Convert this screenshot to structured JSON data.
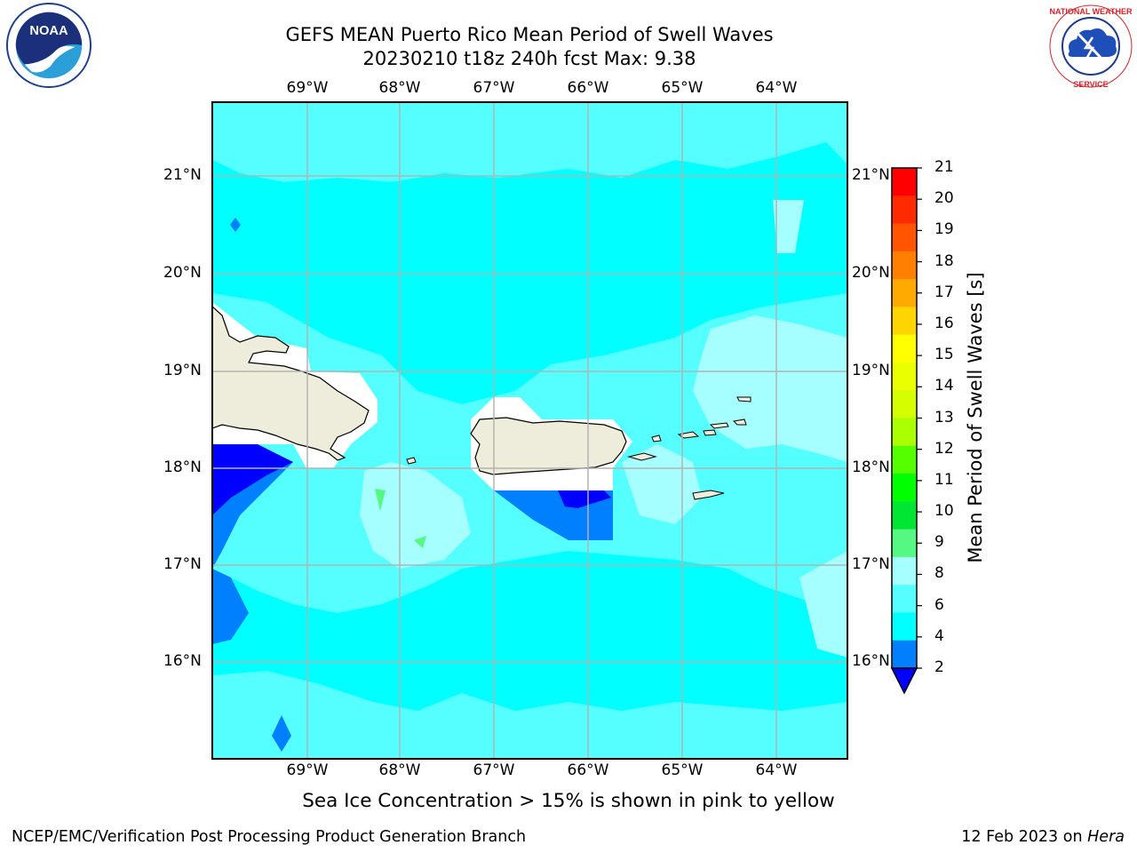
{
  "header": {
    "title_line1": "GEFS MEAN Puerto Rico Mean Period of Swell Waves",
    "title_line2": "20230210 t18z 240h fcst   Max: 9.38"
  },
  "logos": {
    "left": "NOAA",
    "right": "NATIONAL WEATHER SERVICE"
  },
  "map": {
    "longitude_labels": [
      "69°W",
      "68°W",
      "67°W",
      "66°W",
      "65°W",
      "64°W"
    ],
    "latitude_labels": [
      "21°N",
      "20°N",
      "19°N",
      "18°N",
      "17°N",
      "16°N"
    ],
    "grid": true,
    "colors": {
      "land": "#eeecdb",
      "white_band": "#ffffff",
      "2-4": "#0080ff",
      "4-6": "#00ffff",
      "6-8": "#55ffff",
      "8-9": "#a6ffff",
      "9-10": "#55f880",
      "below_2": "#0000ff"
    }
  },
  "colorbar": {
    "title": "Mean Period of Swell Waves [s]",
    "tick_labels": [
      "21",
      "20",
      "19",
      "18",
      "17",
      "16",
      "15",
      "14",
      "13",
      "12",
      "11",
      "10",
      "9",
      "8",
      "6",
      "4",
      "2"
    ],
    "bin_colors": [
      "#ff0000",
      "#ff2a00",
      "#ff5500",
      "#ff8000",
      "#ffaa00",
      "#ffd500",
      "#ffff00",
      "#eaff00",
      "#d5ff00",
      "#aaff00",
      "#55ff00",
      "#00ff00",
      "#00e632",
      "#55f880",
      "#a6ffff",
      "#55ffff",
      "#00ffff",
      "#0080ff"
    ],
    "extend_below_color": "#0000ff"
  },
  "note": "Sea Ice Concentration > 15% is shown in pink to yellow",
  "footer": {
    "left": "NCEP/EMC/Verification Post Processing Product Generation Branch",
    "right_date": "12 Feb 2023 on",
    "right_host": "Hera"
  }
}
